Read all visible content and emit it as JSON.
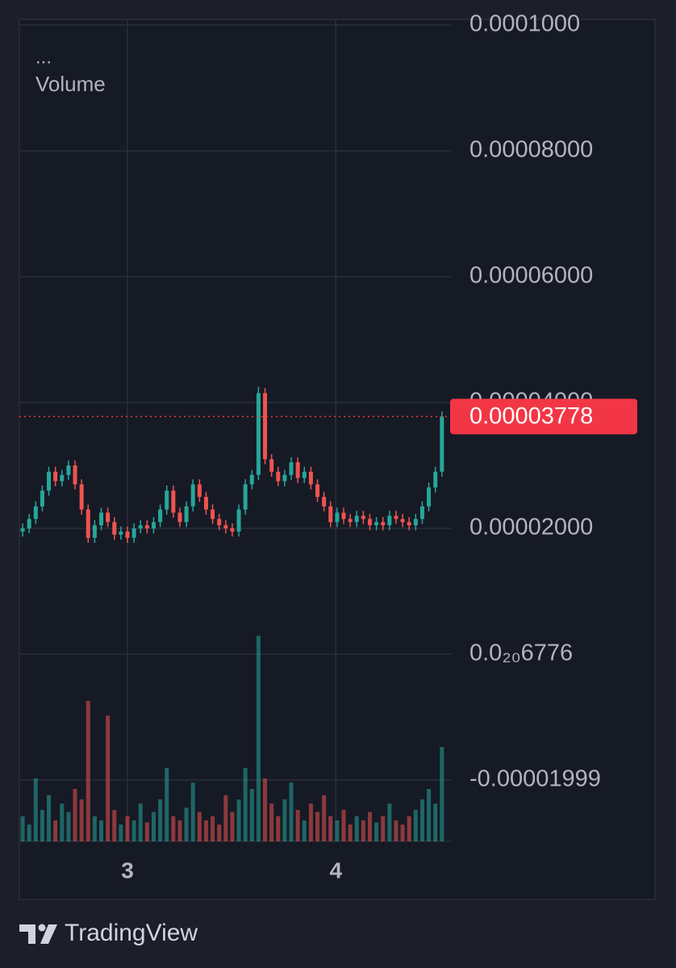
{
  "chart_data": {
    "type": "candlestick",
    "menu": "...",
    "volume_label": "Volume",
    "footer": "TradingView",
    "up_color": "#26a69a",
    "down_color": "#ef5350",
    "price_line_color": "#f23645",
    "grid": true,
    "xlim": [
      0,
      66
    ],
    "xticks": [
      {
        "value": 16.5,
        "label": "3"
      },
      {
        "value": 48.3,
        "label": "4"
      }
    ],
    "ylim": [
      -2.974e-05,
      0.0001009
    ],
    "yticks": [
      {
        "value": 0.0001,
        "label": "0.0001000"
      },
      {
        "value": 8e-05,
        "label": "0.00008000"
      },
      {
        "value": 6e-05,
        "label": "0.00006000"
      },
      {
        "value": 4e-05,
        "label": "0.00004000"
      },
      {
        "value": 2e-05,
        "label": "0.00002000"
      },
      {
        "value": 6.776e-21,
        "label": "0.0₂₀6776"
      },
      -1.999e-05
    ],
    "last_price": 3.778e-05,
    "open": [
      1.95e-05,
      2e-05,
      2.15e-05,
      2.35e-05,
      2.6e-05,
      2.9e-05,
      2.75e-05,
      2.85e-05,
      3e-05,
      2.7e-05,
      2.3e-05,
      1.85e-05,
      2.05e-05,
      2.25e-05,
      2.1e-05,
      1.9e-05,
      1.95e-05,
      1.85e-05,
      2e-05,
      2.05e-05,
      2e-05,
      2.1e-05,
      2.3e-05,
      2.6e-05,
      2.25e-05,
      2.1e-05,
      2.35e-05,
      2.7e-05,
      2.5e-05,
      2.3e-05,
      2.15e-05,
      2.05e-05,
      2e-05,
      1.95e-05,
      2.3e-05,
      2.7e-05,
      2.85e-05,
      4.15e-05,
      3.1e-05,
      2.9e-05,
      2.75e-05,
      2.85e-05,
      3.05e-05,
      2.8e-05,
      2.9e-05,
      2.7e-05,
      2.5e-05,
      2.35e-05,
      2.1e-05,
      2.25e-05,
      2.15e-05,
      2.1e-05,
      2.2e-05,
      2.15e-05,
      2.05e-05,
      2.1e-05,
      2.05e-05,
      2.2e-05,
      2.15e-05,
      2.1e-05,
      2.05e-05,
      2.15e-05,
      2.35e-05,
      2.65e-05,
      2.9e-05
    ],
    "high": [
      2.08e-05,
      2.23e-05,
      2.43e-05,
      2.68e-05,
      2.98e-05,
      2.98e-05,
      2.93e-05,
      3.08e-05,
      3.08e-05,
      2.78e-05,
      2.38e-05,
      2.13e-05,
      2.33e-05,
      2.33e-05,
      2.18e-05,
      2.03e-05,
      2.03e-05,
      2.08e-05,
      2.13e-05,
      2.13e-05,
      2.18e-05,
      2.38e-05,
      2.68e-05,
      2.68e-05,
      2.33e-05,
      2.43e-05,
      2.78e-05,
      2.78e-05,
      2.58e-05,
      2.38e-05,
      2.23e-05,
      2.13e-05,
      2.08e-05,
      2.38e-05,
      2.78e-05,
      2.93e-05,
      4.25e-05,
      4.23e-05,
      3.18e-05,
      2.98e-05,
      2.93e-05,
      3.13e-05,
      3.13e-05,
      2.98e-05,
      2.98e-05,
      2.78e-05,
      2.58e-05,
      2.43e-05,
      2.33e-05,
      2.33e-05,
      2.23e-05,
      2.28e-05,
      2.28e-05,
      2.23e-05,
      2.18e-05,
      2.18e-05,
      2.28e-05,
      2.28e-05,
      2.23e-05,
      2.18e-05,
      2.23e-05,
      2.43e-05,
      2.73e-05,
      2.98e-05,
      3.858e-05
    ],
    "low": [
      1.87e-05,
      1.92e-05,
      2.07e-05,
      2.27e-05,
      2.52e-05,
      2.67e-05,
      2.67e-05,
      2.77e-05,
      2.62e-05,
      2.22e-05,
      1.77e-05,
      1.77e-05,
      1.97e-05,
      2.02e-05,
      1.82e-05,
      1.82e-05,
      1.77e-05,
      1.77e-05,
      1.92e-05,
      1.92e-05,
      1.92e-05,
      2.02e-05,
      2.22e-05,
      2.17e-05,
      2.02e-05,
      2.02e-05,
      2.27e-05,
      2.42e-05,
      2.22e-05,
      2.07e-05,
      1.97e-05,
      1.92e-05,
      1.87e-05,
      1.87e-05,
      2.22e-05,
      2.62e-05,
      2.77e-05,
      3.02e-05,
      2.82e-05,
      2.67e-05,
      2.67e-05,
      2.77e-05,
      2.72e-05,
      2.72e-05,
      2.62e-05,
      2.42e-05,
      2.27e-05,
      2.02e-05,
      2.02e-05,
      2.07e-05,
      2.02e-05,
      2.02e-05,
      2.07e-05,
      1.97e-05,
      1.97e-05,
      1.97e-05,
      1.97e-05,
      2.07e-05,
      2.02e-05,
      1.97e-05,
      1.97e-05,
      2.07e-05,
      2.27e-05,
      2.57e-05,
      2.82e-05
    ],
    "close": [
      2e-05,
      2.15e-05,
      2.35e-05,
      2.6e-05,
      2.9e-05,
      2.75e-05,
      2.85e-05,
      3e-05,
      2.7e-05,
      2.3e-05,
      1.85e-05,
      2.05e-05,
      2.25e-05,
      2.1e-05,
      1.9e-05,
      1.95e-05,
      1.85e-05,
      2e-05,
      2.05e-05,
      2e-05,
      2.1e-05,
      2.3e-05,
      2.6e-05,
      2.25e-05,
      2.1e-05,
      2.35e-05,
      2.7e-05,
      2.5e-05,
      2.3e-05,
      2.15e-05,
      2.05e-05,
      2e-05,
      1.95e-05,
      2.3e-05,
      2.7e-05,
      2.85e-05,
      4.15e-05,
      3.1e-05,
      2.9e-05,
      2.75e-05,
      2.85e-05,
      3.05e-05,
      2.8e-05,
      2.9e-05,
      2.7e-05,
      2.5e-05,
      2.35e-05,
      2.1e-05,
      2.25e-05,
      2.15e-05,
      2.1e-05,
      2.2e-05,
      2.15e-05,
      2.05e-05,
      2.1e-05,
      2.05e-05,
      2.2e-05,
      2.15e-05,
      2.1e-05,
      2.05e-05,
      2.15e-05,
      2.35e-05,
      2.65e-05,
      2.9e-05,
      3.778e-05
    ],
    "volume_lim": [
      0,
      100
    ],
    "volume": [
      12,
      8,
      30,
      15,
      22,
      10,
      18,
      14,
      25,
      20,
      67,
      12,
      10,
      60,
      15,
      8,
      12,
      10,
      18,
      9,
      14,
      20,
      35,
      12,
      10,
      16,
      28,
      14,
      10,
      12,
      8,
      22,
      14,
      20,
      35,
      25,
      98,
      30,
      18,
      12,
      20,
      28,
      15,
      10,
      18,
      14,
      22,
      12,
      10,
      15,
      8,
      12,
      10,
      14,
      9,
      12,
      18,
      10,
      8,
      12,
      15,
      20,
      25,
      18,
      45
    ]
  }
}
